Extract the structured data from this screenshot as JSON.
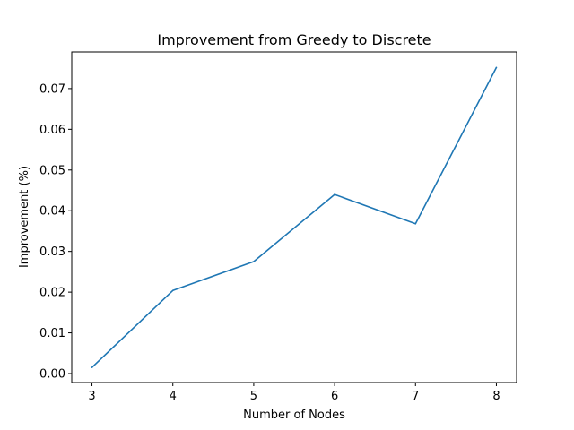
{
  "chart_data": {
    "type": "line",
    "title": "Improvement from Greedy to Discrete",
    "xlabel": "Number of Nodes",
    "ylabel": "Improvement (%)",
    "x": [
      3,
      4,
      5,
      6,
      7,
      8
    ],
    "series": [
      {
        "values": [
          0.0015,
          0.0204,
          0.0275,
          0.044,
          0.0368,
          0.0752
        ],
        "color": "#1f77b4"
      }
    ],
    "xlim": [
      2.75,
      8.25
    ],
    "ylim": [
      -0.0022,
      0.079
    ],
    "xticks": [
      3,
      4,
      5,
      6,
      7,
      8
    ],
    "xtick_labels": [
      "3",
      "4",
      "5",
      "6",
      "7",
      "8"
    ],
    "yticks": [
      0.0,
      0.01,
      0.02,
      0.03,
      0.04,
      0.05,
      0.06,
      0.07
    ],
    "ytick_labels": [
      "0.00",
      "0.01",
      "0.02",
      "0.03",
      "0.04",
      "0.05",
      "0.06",
      "0.07"
    ],
    "grid": false,
    "legend": false
  }
}
